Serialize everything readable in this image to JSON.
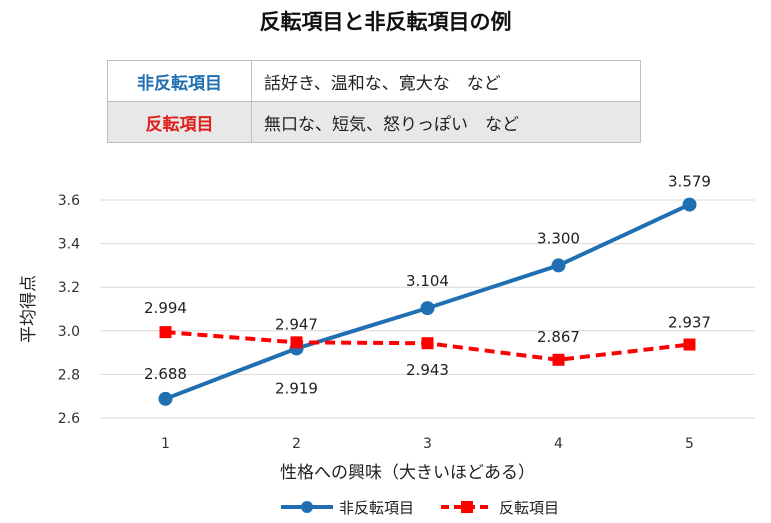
{
  "title": "反転項目と非反転項目の例",
  "table": {
    "rows": [
      {
        "category": "非反転項目",
        "examples": "話好き、温和な、寛大な　など",
        "color": "#1f6fb2"
      },
      {
        "category": "反転項目",
        "examples": "無口な、短気、怒りっぽい　など",
        "color": "#e0201c"
      }
    ]
  },
  "chart_data": {
    "type": "line",
    "x": [
      1,
      2,
      3,
      4,
      5
    ],
    "xlabel": "性格への興味（大きいほどある）",
    "ylabel": "平均得点",
    "ylim": [
      2.6,
      3.6
    ],
    "yticks": [
      "2.6",
      "2.8",
      "3.0",
      "3.2",
      "3.4",
      "3.6"
    ],
    "grid": true,
    "legend_position": "bottom",
    "series": [
      {
        "name": "非反転項目",
        "values": [
          2.688,
          2.919,
          3.104,
          3.3,
          3.579
        ],
        "labels": [
          "2.688",
          "2.919",
          "3.104",
          "3.300",
          "3.579"
        ],
        "color": "#1f6fb2",
        "style": "solid",
        "marker": "circle"
      },
      {
        "name": "反転項目",
        "values": [
          2.994,
          2.947,
          2.943,
          2.867,
          2.937
        ],
        "labels": [
          "2.994",
          "2.947",
          "2.943",
          "2.867",
          "2.937"
        ],
        "color": "#ff0000",
        "style": "dashed",
        "marker": "square"
      }
    ]
  }
}
